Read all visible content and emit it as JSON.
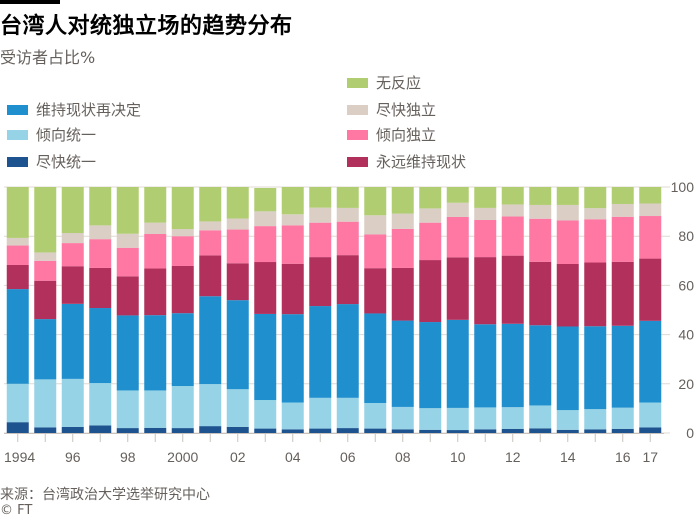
{
  "title": "台湾人对统独立场的趋势分布",
  "subtitle": "受访者占比%",
  "source": "来源：台湾政治大学选举研究中心",
  "copyright": "© FT",
  "legend": {
    "left": [
      {
        "label": "维持现状再决定",
        "color": "#1f8fce"
      },
      {
        "label": "倾向统一",
        "color": "#96d3e6"
      },
      {
        "label": "尽快统一",
        "color": "#1d5490"
      }
    ],
    "right": [
      {
        "label": "无反应",
        "color": "#b0cd72"
      },
      {
        "label": "尽快独立",
        "color": "#dacec5"
      },
      {
        "label": "倾向独立",
        "color": "#ff77a3"
      },
      {
        "label": "永远维持现状",
        "color": "#b1305c"
      }
    ]
  },
  "chart_data": {
    "type": "bar",
    "stacked": true,
    "title": "台湾人对统独立场的趋势分布",
    "subtitle": "受访者占比%",
    "xlabel": "",
    "ylabel": "受访者占比%",
    "ylim": [
      0,
      100
    ],
    "yticks": [
      0,
      20,
      40,
      60,
      80,
      100
    ],
    "y_axis_side": "right",
    "grid": true,
    "legend_position": "top",
    "categories": [
      "1994",
      "1995",
      "1996",
      "1997",
      "1998",
      "1999",
      "2000",
      "2001",
      "2002",
      "2003",
      "2004",
      "2005",
      "2006",
      "2007",
      "2008",
      "2009",
      "2010",
      "2011",
      "2012",
      "2013",
      "2014",
      "2015",
      "2016",
      "2017"
    ],
    "xtick_labels": [
      {
        "category": "1994",
        "label": "1994"
      },
      {
        "category": "1996",
        "label": "96"
      },
      {
        "category": "1998",
        "label": "98"
      },
      {
        "category": "2000",
        "label": "2000"
      },
      {
        "category": "2002",
        "label": "02"
      },
      {
        "category": "2004",
        "label": "04"
      },
      {
        "category": "2006",
        "label": "06"
      },
      {
        "category": "2008",
        "label": "08"
      },
      {
        "category": "2010",
        "label": "10"
      },
      {
        "category": "2012",
        "label": "12"
      },
      {
        "category": "2014",
        "label": "14"
      },
      {
        "category": "2016",
        "label": "16"
      },
      {
        "category": "2017",
        "label": "17"
      }
    ],
    "series": [
      {
        "name": "尽快统一",
        "color": "#1d5490",
        "values": [
          4.4,
          2.3,
          2.5,
          3.1,
          2.0,
          2.1,
          2.0,
          2.8,
          2.5,
          1.8,
          1.5,
          1.8,
          2.0,
          1.8,
          1.5,
          1.3,
          1.2,
          1.5,
          1.7,
          1.9,
          1.3,
          1.5,
          1.7,
          2.3
        ]
      },
      {
        "name": "倾向统一",
        "color": "#96d3e6",
        "values": [
          15.6,
          19.5,
          19.5,
          17.2,
          15.3,
          15.2,
          17.1,
          17.1,
          15.3,
          11.6,
          10.9,
          12.5,
          12.3,
          10.4,
          9.1,
          8.8,
          9.0,
          8.9,
          8.8,
          9.3,
          8.0,
          8.2,
          8.6,
          10.1
        ]
      },
      {
        "name": "维持现状再决定",
        "color": "#1f8fce",
        "values": [
          38.5,
          24.5,
          30.5,
          30.5,
          30.5,
          30.6,
          29.6,
          35.7,
          36.2,
          35.0,
          35.9,
          37.3,
          38.1,
          36.4,
          35.1,
          35.0,
          35.8,
          33.8,
          33.9,
          32.6,
          34.0,
          33.7,
          33.3,
          33.2
        ]
      },
      {
        "name": "永远维持现状",
        "color": "#b1305c",
        "values": [
          9.8,
          15.6,
          15.3,
          16.3,
          15.9,
          19.0,
          19.2,
          16.6,
          15.0,
          21.1,
          20.5,
          19.9,
          19.9,
          18.4,
          21.4,
          25.2,
          25.4,
          27.3,
          27.7,
          25.8,
          25.4,
          25.9,
          26.0,
          25.3
        ]
      },
      {
        "name": "倾向独立",
        "color": "#ff77a3",
        "values": [
          7.9,
          8.1,
          9.4,
          11.7,
          11.6,
          14.0,
          12.1,
          10.2,
          13.7,
          14.6,
          15.6,
          14.0,
          13.6,
          13.7,
          15.9,
          15.2,
          16.4,
          15.1,
          15.9,
          17.5,
          17.7,
          17.6,
          18.3,
          17.3
        ]
      },
      {
        "name": "尽快独立",
        "color": "#dacec5",
        "values": [
          3.1,
          3.4,
          4.1,
          5.6,
          5.7,
          4.6,
          2.9,
          3.6,
          4.5,
          6.0,
          4.5,
          6.1,
          5.6,
          7.8,
          6.2,
          5.8,
          5.8,
          4.9,
          4.9,
          5.6,
          6.3,
          4.5,
          5.2,
          5.1
        ]
      },
      {
        "name": "无反应",
        "color": "#b0cd72",
        "values": [
          20.7,
          26.6,
          18.7,
          15.6,
          19.0,
          14.5,
          17.1,
          14.0,
          12.8,
          9.5,
          11.1,
          8.4,
          8.5,
          11.5,
          10.8,
          8.7,
          6.4,
          8.5,
          7.1,
          7.3,
          7.3,
          8.6,
          6.9,
          6.7
        ]
      }
    ]
  }
}
